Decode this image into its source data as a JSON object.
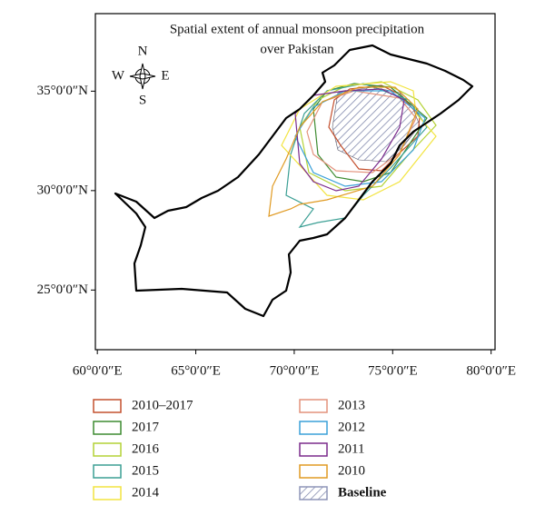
{
  "map": {
    "title": [
      "Spatial extent of annual monsoon precipitation",
      "over Pakistan"
    ],
    "compass": {
      "n": "N",
      "s": "S",
      "e": "E",
      "w": "W"
    },
    "xlim": [
      59.9,
      80.2
    ],
    "ylim": [
      22.0,
      38.9
    ],
    "xticks": [
      {
        "value": 60,
        "label": "60°0′0″E"
      },
      {
        "value": 65,
        "label": "65°0′0″E"
      },
      {
        "value": 70,
        "label": "70°0′0″E"
      },
      {
        "value": 75,
        "label": "75°0′0″E"
      },
      {
        "value": 80,
        "label": "80°0′0″E"
      }
    ],
    "yticks": [
      {
        "value": 25,
        "label": "25°0′0″N"
      },
      {
        "value": 30,
        "label": "30°0′0″N"
      },
      {
        "value": 35,
        "label": "35°0′0″N"
      }
    ],
    "legend": [
      {
        "label": "2010–2017",
        "color": "#c4502e"
      },
      {
        "label": "2017",
        "color": "#3d8b30"
      },
      {
        "label": "2016",
        "color": "#b4d236"
      },
      {
        "label": "2015",
        "color": "#3b9f94"
      },
      {
        "label": "2014",
        "color": "#f2e440"
      },
      {
        "label": "2013",
        "color": "#e3927c"
      },
      {
        "label": "2012",
        "color": "#3aa0d8"
      },
      {
        "label": "2011",
        "color": "#7b2b8c"
      },
      {
        "label": "2010",
        "color": "#e09a22"
      },
      {
        "label": "Baseline",
        "color": "#8f96b8"
      }
    ]
  }
}
